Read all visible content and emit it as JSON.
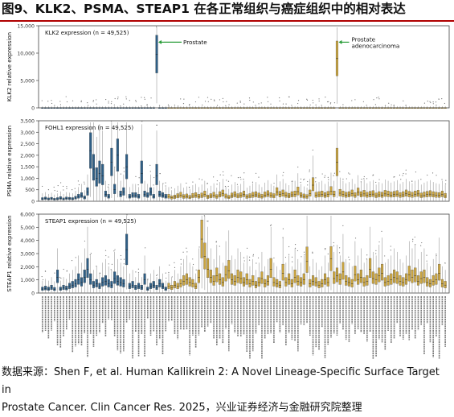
{
  "page": {
    "title": "图9、KLK2、PSMA、STEAP1 在各正常组织与癌症组织中的相对表达",
    "source_line1": "数据来源：Shen F, et al. Human Kallikrein 2: A Novel Lineage-Specific Surface Target in",
    "source_line2": "Prostate Cancer. Clin Cancer Res. 2025，兴业证券经济与金融研究院整理"
  },
  "colors": {
    "normal_tissue": "#2f5f86",
    "cancer_tissue": "#c9a441",
    "annotation_arrow": "#2a9d3a",
    "title_rule": "#b00000"
  },
  "chart_data": [
    {
      "type": "box",
      "panel_label": "KLK2 expression (n = 49,525)",
      "ylabel": "KLK2 relative expression",
      "ylim": [
        0,
        15000
      ],
      "yticks": [
        "0",
        "5,000",
        "10,000",
        "15,000"
      ],
      "ytick_values": [
        0,
        5000,
        10000,
        15000
      ],
      "annotations": [
        {
          "text": "Prostate",
          "group": "normal",
          "value": 12000
        },
        {
          "text": "Prostate adenocarcinoma",
          "group": "cancer",
          "value": 12000
        }
      ],
      "normal_values": [
        0,
        0,
        0,
        0,
        0,
        0,
        0,
        0,
        0,
        0,
        0,
        0,
        0,
        0,
        0,
        0,
        0,
        0,
        0,
        0,
        0,
        0,
        0,
        0,
        0,
        0,
        0,
        0,
        0,
        0,
        0,
        0,
        0,
        0,
        0,
        0,
        0,
        0,
        9800,
        0,
        0,
        0
      ],
      "cancer_values": [
        0,
        0,
        0,
        0,
        0,
        0,
        0,
        0,
        0,
        0,
        0,
        0,
        0,
        0,
        0,
        0,
        0,
        0,
        0,
        0,
        0,
        0,
        0,
        0,
        0,
        0,
        0,
        0,
        0,
        0,
        0,
        0,
        0,
        0,
        0,
        0,
        0,
        0,
        0,
        0,
        0,
        0,
        0,
        0,
        0,
        0,
        0,
        0,
        0,
        0,
        0,
        0,
        0,
        0,
        0,
        0,
        9000,
        0,
        0,
        0,
        0,
        0,
        0,
        0,
        0,
        0,
        0,
        0,
        0,
        0,
        0,
        0,
        0,
        0,
        0,
        0,
        0,
        0,
        0,
        0,
        0,
        0,
        0,
        0,
        0,
        0,
        0,
        0,
        0,
        0,
        0,
        0,
        0
      ]
    },
    {
      "type": "box",
      "panel_label": "FOHL1 expression (n = 49,525)",
      "ylabel": "PSMA relative expression",
      "ylim": [
        0,
        3500
      ],
      "yticks": [
        "0",
        "500",
        "1,000",
        "1,500",
        "2,000",
        "2,500",
        "3,000",
        "3,500"
      ],
      "ytick_values": [
        0,
        500,
        1000,
        1500,
        2000,
        2500,
        3000,
        3500
      ],
      "normal_values": [
        100,
        120,
        90,
        110,
        80,
        100,
        130,
        90,
        120,
        110,
        100,
        140,
        200,
        250,
        150,
        400,
        2200,
        1400,
        1000,
        1200,
        1100,
        300,
        200,
        1700,
        500,
        2000,
        300,
        400,
        1500,
        200,
        250,
        250,
        200,
        1200,
        300,
        250,
        400,
        200,
        1100,
        300,
        250,
        200
      ],
      "cancer_values": [
        200,
        150,
        180,
        220,
        260,
        190,
        210,
        170,
        230,
        250,
        200,
        240,
        300,
        180,
        220,
        260,
        190,
        280,
        330,
        210,
        170,
        240,
        280,
        220,
        250,
        300,
        190,
        220,
        260,
        280,
        240,
        200,
        270,
        310,
        250,
        220,
        400,
        290,
        330,
        260,
        230,
        280,
        300,
        420,
        250,
        210,
        190,
        330,
        700,
        260,
        280,
        300,
        250,
        290,
        430,
        300,
        1700,
        350,
        300,
        260,
        280,
        330,
        250,
        390,
        280,
        320,
        260,
        290,
        310,
        240,
        280,
        260,
        320,
        300,
        270,
        290,
        310,
        250,
        280,
        330,
        290,
        260,
        300,
        320,
        240,
        270,
        290,
        310,
        280,
        260,
        250,
        300,
        230
      ]
    },
    {
      "type": "box",
      "panel_label": "STEAP1 expression (n = 49,525)",
      "ylabel": "STEAP1 relative expression",
      "ylim": [
        0,
        6000
      ],
      "yticks": [
        "0",
        "1,000",
        "2,000",
        "3,000",
        "4,000",
        "5,000",
        "6,000"
      ],
      "ytick_values": [
        0,
        1000,
        2000,
        3000,
        4000,
        5000,
        6000
      ],
      "normal_values": [
        300,
        350,
        300,
        400,
        280,
        1200,
        300,
        400,
        350,
        500,
        600,
        700,
        1000,
        800,
        1200,
        1800,
        1000,
        600,
        700,
        500,
        800,
        900,
        700,
        600,
        1100,
        900,
        800,
        700,
        3300,
        500,
        600,
        400,
        500,
        400,
        1000,
        300,
        500,
        600,
        400,
        700,
        500,
        300
      ],
      "cancer_values": [
        500,
        400,
        600,
        500,
        700,
        900,
        1000,
        800,
        700,
        500,
        1200,
        4100,
        2800,
        1800,
        1200,
        900,
        1300,
        1000,
        800,
        1400,
        1700,
        1000,
        900,
        1200,
        1100,
        800,
        1000,
        700,
        900,
        600,
        800,
        1100,
        700,
        900,
        1800,
        800,
        700,
        600,
        1500,
        800,
        1000,
        700,
        1200,
        900,
        800,
        1000,
        2400,
        700,
        900,
        800,
        600,
        700,
        1000,
        800,
        2600,
        1100,
        1300,
        1000,
        1600,
        900,
        800,
        700,
        1400,
        1000,
        1200,
        800,
        900,
        1800,
        1100,
        1000,
        1300,
        1500,
        800,
        900,
        1000,
        1200,
        1100,
        900,
        800,
        1000,
        1400,
        1200,
        1300,
        900,
        1100,
        1200,
        800,
        700,
        900,
        1000,
        1500,
        700,
        600
      ]
    }
  ]
}
